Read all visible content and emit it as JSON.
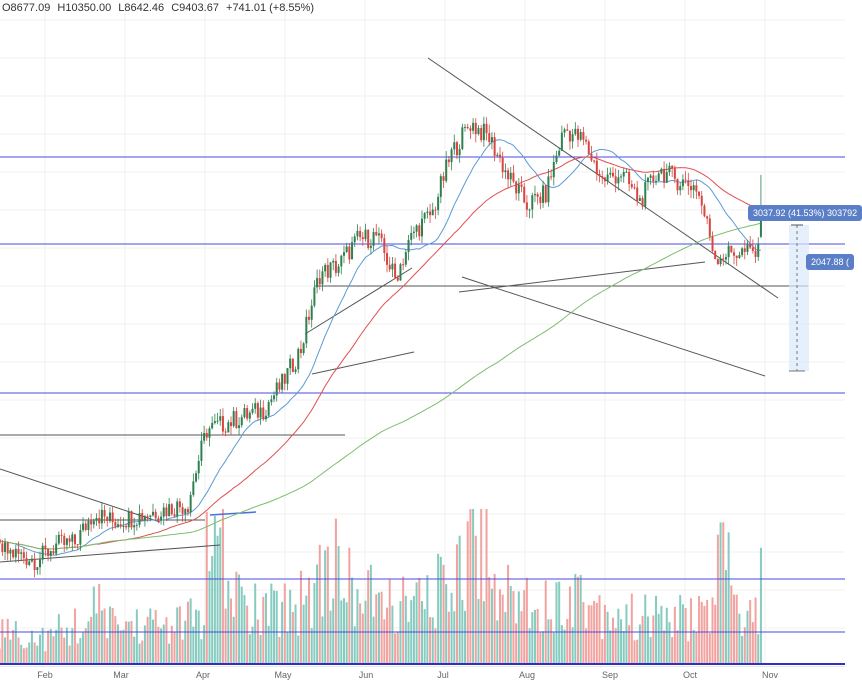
{
  "header": {
    "open": "O8677.09",
    "high": "H10350.00",
    "low": "L8642.46",
    "close": "C9403.67",
    "change": "+741.01 (+8.55%)"
  },
  "labels": {
    "measure": "3037.92 (41.53%) 303792",
    "price_tag": "2047.88 ("
  },
  "x_axis": [
    "Feb",
    "Mar",
    "Apr",
    "May",
    "Jun",
    "Jul",
    "Aug",
    "Sep",
    "Oct",
    "Nov"
  ],
  "colors": {
    "up_candle": "#2e8050",
    "down_candle": "#d9443f",
    "up_volume": "#86cbbf",
    "down_volume": "#f2a3a0",
    "ma_fast": "#5b9bd5",
    "ma_mid": "#e05050",
    "ma_slow": "#7cbf6e",
    "level_line": "#4a4ae0",
    "trend_line": "#555555"
  },
  "chart_data": {
    "type": "candlestick",
    "title": "",
    "x_range": [
      "2019-01-01",
      "2019-11-10"
    ],
    "weekly_closes": [
      3800,
      3600,
      3550,
      3500,
      3450,
      3600,
      3620,
      3950,
      3850,
      3900,
      3950,
      4000,
      4050,
      5000,
      5100,
      5200,
      5300,
      5700,
      6300,
      7800,
      8000,
      8600,
      8700,
      7700,
      8800,
      9300,
      11000,
      12000,
      11500,
      10300,
      9500,
      9800,
      11800,
      11400,
      10200,
      10400,
      9600,
      10500,
      10200,
      10000,
      8200,
      8300,
      8300,
      8200,
      7400
    ],
    "weekly_volume_rel": [
      0.3,
      0.25,
      0.25,
      0.2,
      0.2,
      0.25,
      0.3,
      0.4,
      0.3,
      0.3,
      0.3,
      0.3,
      0.35,
      0.8,
      0.55,
      0.4,
      0.4,
      0.45,
      0.55,
      0.75,
      0.6,
      0.5,
      0.45,
      0.45,
      0.45,
      0.55,
      0.8,
      1.0,
      0.6,
      0.5,
      0.5,
      0.45,
      0.55,
      0.45,
      0.4,
      0.35,
      0.35,
      0.35,
      0.35,
      0.4,
      0.75,
      0.4,
      0.35,
      0.35,
      0.4
    ],
    "last_candle": {
      "open": 8677.09,
      "high": 10350.0,
      "low": 8642.46,
      "close": 9403.67,
      "volume_rel": 0.75
    },
    "moving_averages": [
      20,
      50,
      200
    ]
  }
}
